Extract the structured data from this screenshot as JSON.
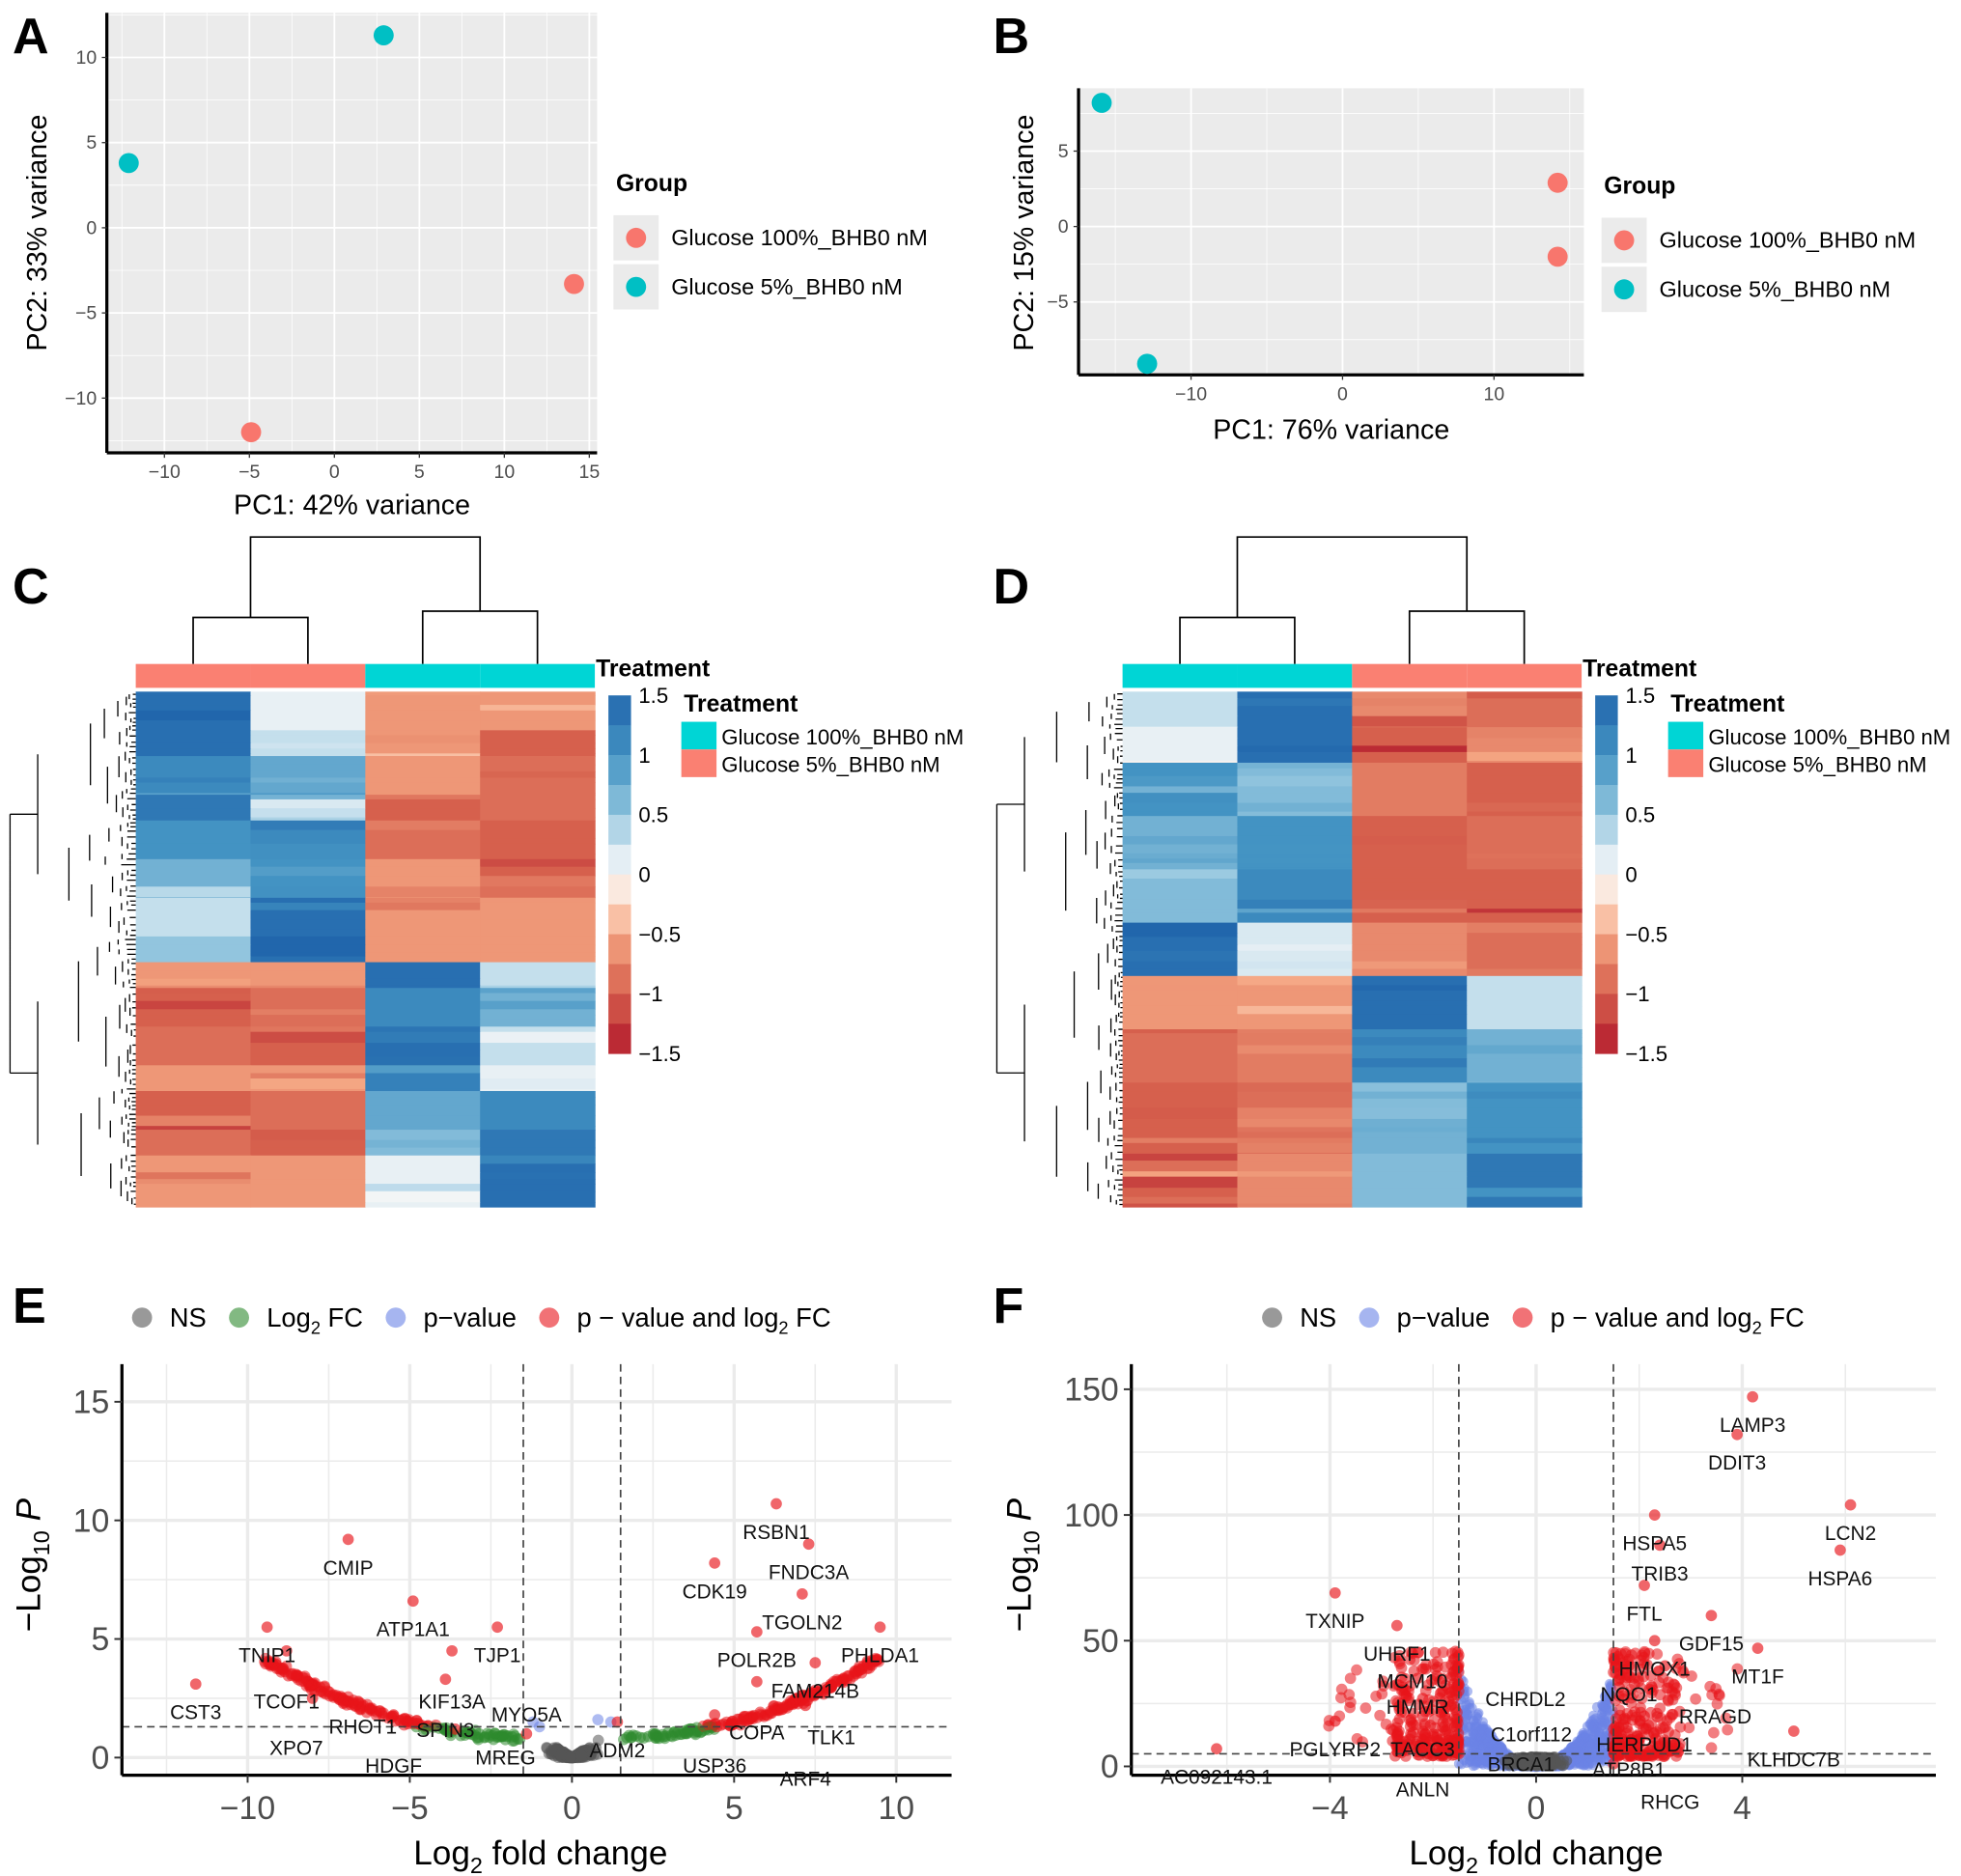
{
  "panels": {
    "A": "A",
    "B": "B",
    "C": "C",
    "D": "D",
    "E": "E",
    "F": "F"
  },
  "colors": {
    "group_red": "#f8766d",
    "group_cyan": "#00bfc4",
    "ns": "#555555",
    "log2fc": "#2e8b2e",
    "pvalue": "#6b84e6",
    "both": "#e8141a",
    "annot_cyan": "#00d5d5",
    "annot_salmon": "#fa8072"
  },
  "chart_data": [
    {
      "panel": "A",
      "type": "scatter",
      "xlabel": "PC1: 42% variance",
      "ylabel": "PC2: 33% variance",
      "xticks": [
        -10,
        -5,
        0,
        5,
        10,
        15
      ],
      "yticks": [
        -10,
        -5,
        0,
        5,
        10
      ],
      "xlim": [
        -13.5,
        15.2
      ],
      "ylim": [
        -13.2,
        12.7
      ],
      "grid": true,
      "legend": {
        "title": "Group",
        "placement": "right",
        "entries": [
          "Glucose 100%_BHB0 nM",
          "Glucose 5%_BHB0 nM"
        ]
      },
      "series": [
        {
          "name": "Glucose 100%_BHB0 nM",
          "color": "#f8766d",
          "points": [
            [
              14.1,
              -3.3
            ],
            [
              -4.9,
              -12.0
            ]
          ]
        },
        {
          "name": "Glucose 5%_BHB0 nM",
          "color": "#00bfc4",
          "points": [
            [
              2.9,
              11.3
            ],
            [
              -12.1,
              3.8
            ]
          ]
        }
      ]
    },
    {
      "panel": "B",
      "type": "scatter",
      "xlabel": "PC1: 76% variance",
      "ylabel": "PC2: 15% variance",
      "xticks": [
        -10,
        0,
        10
      ],
      "yticks": [
        -5,
        0,
        5
      ],
      "xlim": [
        -17.4,
        16
      ],
      "ylim": [
        -9.8,
        9.2
      ],
      "grid": true,
      "legend": {
        "title": "Group",
        "placement": "right",
        "entries": [
          "Glucose 100%_BHB0 nM",
          "Glucose 5%_BHB0 nM"
        ]
      },
      "series": [
        {
          "name": "Glucose 100%_BHB0 nM",
          "color": "#f8766d",
          "points": [
            [
              14.2,
              2.9
            ],
            [
              14.2,
              -2.0
            ]
          ]
        },
        {
          "name": "Glucose 5%_BHB0 nM",
          "color": "#00bfc4",
          "points": [
            [
              -15.9,
              8.2
            ],
            [
              -12.9,
              -9.1
            ]
          ]
        }
      ]
    },
    {
      "panel": "C",
      "type": "heatmap",
      "annotation_title": "Treatment",
      "column_annotation": [
        "salmon",
        "salmon",
        "cyan",
        "cyan"
      ],
      "scale_ticks": [
        "1.5",
        "1",
        "0.5",
        "0",
        "−0.5",
        "−1",
        "−1.5"
      ],
      "scale_range": [
        -1.5,
        1.5
      ],
      "legend": {
        "title": "Treatment",
        "entries": [
          {
            "label": "Glucose 100%_BHB0 nM",
            "color": "#00d5d5"
          },
          {
            "label": "Glucose 5%_BHB0 nM",
            "color": "#fa8072"
          }
        ]
      },
      "row_blocks": [
        [
          3,
          1.4,
          0.1,
          -0.6,
          -0.6
        ],
        [
          2,
          1.4,
          0.3,
          -0.6,
          -1
        ],
        [
          3,
          1.1,
          0.8,
          -0.6,
          -0.9
        ],
        [
          2,
          1.3,
          0.4,
          -1,
          -0.9
        ],
        [
          3,
          1.0,
          1.1,
          -0.9,
          -1
        ],
        [
          3,
          0.7,
          1.0,
          -0.6,
          -1
        ],
        [
          3,
          0.3,
          1.4,
          -0.6,
          -0.6
        ],
        [
          2,
          0.5,
          1.5,
          -0.6,
          -0.6
        ],
        [
          2,
          -0.6,
          -0.6,
          1.4,
          0.3
        ],
        [
          3,
          -1,
          -0.9,
          1.1,
          0.7
        ],
        [
          3,
          -0.9,
          -1,
          1.4,
          0.3
        ],
        [
          2,
          -0.6,
          -0.6,
          1.2,
          0.1
        ],
        [
          3,
          -1,
          -0.9,
          0.8,
          1.1
        ],
        [
          2,
          -0.9,
          -1,
          0.6,
          1.3
        ],
        [
          4,
          -0.6,
          -0.6,
          0.1,
          1.4
        ]
      ]
    },
    {
      "panel": "D",
      "type": "heatmap",
      "annotation_title": "Treatment",
      "column_annotation": [
        "cyan",
        "cyan",
        "salmon",
        "salmon"
      ],
      "scale_ticks": [
        "1.5",
        "1",
        "0.5",
        "0",
        "−0.5",
        "−1",
        "−1.5"
      ],
      "scale_range": [
        -1.5,
        1.5
      ],
      "legend": {
        "title": "Treatment",
        "entries": [
          {
            "label": "Glucose 100%_BHB0 nM",
            "color": "#00d5d5"
          },
          {
            "label": "Glucose 5%_BHB0 nM",
            "color": "#fa8072"
          }
        ]
      },
      "row_blocks": [
        [
          2,
          0.3,
          1.4,
          -0.7,
          -0.9
        ],
        [
          2,
          0.1,
          1.4,
          -1,
          -0.7
        ],
        [
          3,
          1.0,
          0.6,
          -0.8,
          -1
        ],
        [
          3,
          0.7,
          1.0,
          -1,
          -0.9
        ],
        [
          3,
          0.6,
          1.1,
          -1,
          -1
        ],
        [
          3,
          1.4,
          0.2,
          -0.7,
          -0.9
        ],
        [
          3,
          -0.6,
          -0.6,
          1.4,
          0.3
        ],
        [
          3,
          -0.9,
          -0.8,
          1.1,
          0.7
        ],
        [
          4,
          -1,
          -0.9,
          0.7,
          1.0
        ],
        [
          3,
          -0.9,
          -0.7,
          0.6,
          1.3
        ]
      ]
    },
    {
      "panel": "E",
      "type": "scatter",
      "xlabel": {
        "pre": "Log",
        "sub": "2",
        "post": " fold change"
      },
      "ylabel": {
        "pre": "−Log",
        "sub": "10",
        "post": " P"
      },
      "xticks": [
        -10,
        -5,
        0,
        5,
        10
      ],
      "yticks": [
        0,
        5,
        10,
        15
      ],
      "thresholds": {
        "log2fc": [
          -1.5,
          1.5
        ],
        "neg_log10_p": 1.3
      },
      "legend": {
        "placement": "top",
        "entries": [
          {
            "label": "NS",
            "color": "#555555"
          },
          {
            "label": "Log",
            "sub": "2",
            "post": " FC",
            "color": "#2e8b2e"
          },
          {
            "label": "p−value",
            "color": "#6b84e6"
          },
          {
            "label": "p − value and log",
            "sub": "2",
            "post": " FC",
            "color": "#e8141a"
          }
        ]
      },
      "labeled_points": [
        [
          "CMIP",
          -6.9,
          9.2
        ],
        [
          "RSBN1",
          6.3,
          10.7
        ],
        [
          "FNDC3A",
          7.3,
          9.0
        ],
        [
          "CDK19",
          4.4,
          8.2
        ],
        [
          "TGOLN2",
          7.1,
          6.9
        ],
        [
          "ATP1A1",
          -4.9,
          6.6
        ],
        [
          "TJP1",
          -2.3,
          5.5
        ],
        [
          "TNIP1",
          -9.4,
          5.5
        ],
        [
          "POLR2B",
          5.7,
          5.3
        ],
        [
          "PHLDA1",
          9.5,
          5.5
        ],
        [
          "KIF13A",
          -3.7,
          4.5
        ],
        [
          "TCOF1",
          -8.8,
          4.5
        ],
        [
          "FAM214B",
          7.5,
          4.0
        ],
        [
          "XPO7",
          -8.5,
          3.5
        ],
        [
          "CST3",
          -11.6,
          3.1
        ],
        [
          "SPIN3",
          -3.9,
          3.3
        ],
        [
          "COPA",
          5.7,
          3.2
        ],
        [
          "TLK1",
          8.0,
          3.0
        ],
        [
          "RHOT1",
          -8.0,
          2.5
        ],
        [
          "ARF4",
          7.2,
          2.2
        ],
        [
          "HDGF",
          -5.5,
          1.8
        ],
        [
          "MREG",
          -3.6,
          1.2
        ],
        [
          "MYO5A",
          -1.4,
          1.0
        ],
        [
          "ADM2",
          1.4,
          1.5
        ],
        [
          "USP36",
          4.4,
          1.8
        ]
      ]
    },
    {
      "panel": "F",
      "type": "scatter",
      "xlabel": {
        "pre": "Log",
        "sub": "2",
        "post": " fold change"
      },
      "ylabel": {
        "pre": "−Log",
        "sub": "10",
        "post": " P"
      },
      "xticks": [
        -4,
        0,
        4
      ],
      "yticks": [
        0,
        50,
        100,
        150
      ],
      "thresholds": {
        "log2fc": [
          -1.5,
          1.5
        ],
        "neg_log10_p": 5
      },
      "legend": {
        "placement": "top",
        "entries": [
          {
            "label": "NS",
            "color": "#555555"
          },
          {
            "label": "p−value",
            "color": "#6b84e6"
          },
          {
            "label": "p − value and log",
            "sub": "2",
            "post": " FC",
            "color": "#e8141a"
          }
        ]
      },
      "labeled_points": [
        [
          "LAMP3",
          4.2,
          147
        ],
        [
          "DDIT3",
          3.9,
          132
        ],
        [
          "LCN2",
          6.1,
          104
        ],
        [
          "HSPA6",
          5.9,
          86
        ],
        [
          "HSPA5",
          2.3,
          100
        ],
        [
          "TRIB3",
          2.4,
          88
        ],
        [
          "FTL",
          2.1,
          72
        ],
        [
          "TXNIP",
          -3.9,
          69
        ],
        [
          "GDF15",
          3.4,
          60
        ],
        [
          "HMOX1",
          2.3,
          50
        ],
        [
          "MT1F",
          4.3,
          47
        ],
        [
          "UHRF1",
          -2.7,
          56
        ],
        [
          "MCM10",
          -2.4,
          45
        ],
        [
          "NQO1",
          1.8,
          40
        ],
        [
          "RRAGD",
          2.5,
          40
        ],
        [
          "HMMR",
          -2.3,
          35
        ],
        [
          "TACC3",
          -2.2,
          27
        ],
        [
          "ANLN",
          -2.2,
          20
        ],
        [
          "HERPUD1",
          2.1,
          20
        ],
        [
          "PGLYRP2",
          -3.9,
          18
        ],
        [
          "BRCA1",
          -2.0,
          12
        ],
        [
          "KLHDC7B",
          5.0,
          14
        ],
        [
          "ATP8B1",
          1.8,
          10
        ],
        [
          "C1orf112",
          -1.8,
          5
        ],
        [
          "RHCG",
          2.6,
          6
        ],
        [
          "AC092143.1",
          -6.2,
          7
        ],
        [
          "CHRDL2",
          1.5,
          1
        ]
      ]
    }
  ]
}
